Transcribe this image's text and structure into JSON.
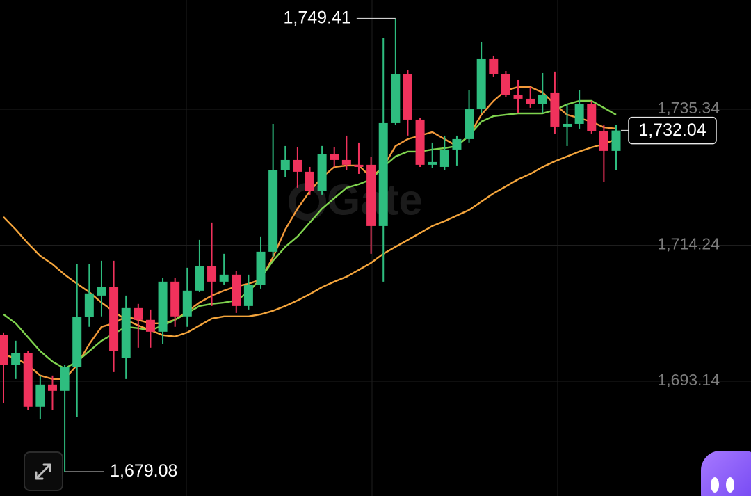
{
  "chart_data": {
    "type": "candlestick",
    "watermark": "Gate",
    "ylim": [
      1675.33,
      1752.29
    ],
    "yticks": [
      {
        "value": 1693.14,
        "label": "1,693.14"
      },
      {
        "value": 1714.24,
        "label": "1,714.24"
      },
      {
        "value": 1735.34,
        "label": "1,735.34"
      }
    ],
    "grid": true,
    "up_color": "#2ebd7f",
    "down_color": "#f0325c",
    "open": [
      1700.28,
      1695.64,
      1697.48,
      1689.17,
      1692.62,
      1691.65,
      1695.32,
      1703.09,
      1706.43,
      1707.73,
      1696.72,
      1704.49,
      1702.66,
      1700.82,
      1708.59,
      1703.2,
      1707.19,
      1710.96,
      1708.59,
      1709.67,
      1704.81,
      1708.05,
      1713.23,
      1725.85,
      1727.47,
      1725.64,
      1722.62,
      1728.34,
      1727.47,
      1726.72,
      1726.72,
      1717.22,
      1733.19,
      1740.74,
      1733.73,
      1726.72,
      1726.39,
      1729.09,
      1730.71,
      1735.35,
      1743.12,
      1740.74,
      1737.51,
      1736.97,
      1736.1,
      1737.94,
      1732.65,
      1733.08,
      1736.1,
      1732.0,
      1728.88
    ],
    "high": [
      1700.71,
      1699.42,
      1697.8,
      1694.02,
      1694.02,
      1695.64,
      1711.29,
      1711.29,
      1711.83,
      1711.83,
      1706.43,
      1705.14,
      1704.27,
      1709.13,
      1709.13,
      1710.75,
      1715.06,
      1717.76,
      1712.91,
      1710.21,
      1709.67,
      1715.6,
      1733.08,
      1729.63,
      1729.42,
      1726.39,
      1729.63,
      1729.42,
      1731.25,
      1730.17,
      1728.01,
      1746.36,
      1749.41,
      1741.5,
      1733.95,
      1730.17,
      1731.25,
      1731.25,
      1738.26,
      1745.82,
      1743.66,
      1741.28,
      1739.88,
      1738.8,
      1740.96,
      1741.18,
      1736.1,
      1738.26,
      1736.64,
      1732.87,
      1732.87
    ],
    "low": [
      1689.71,
      1693.48,
      1688.63,
      1687.23,
      1688.63,
      1679.08,
      1687.55,
      1701.58,
      1703.2,
      1694.56,
      1693.48,
      1698.34,
      1698.34,
      1698.88,
      1701.58,
      1701.58,
      1706.97,
      1704.81,
      1708.05,
      1703.73,
      1704.27,
      1707.51,
      1712.37,
      1724.78,
      1723.16,
      1722.08,
      1722.08,
      1726.39,
      1725.85,
      1725.31,
      1712.91,
      1708.59,
      1732.87,
      1731.25,
      1726.39,
      1726.18,
      1725.85,
      1726.61,
      1730.17,
      1734.81,
      1740.42,
      1737.18,
      1734.81,
      1735.57,
      1734.81,
      1731.57,
      1729.63,
      1732.33,
      1731.57,
      1724.02,
      1725.85
    ],
    "close": [
      1695.64,
      1697.48,
      1689.17,
      1692.62,
      1691.65,
      1695.32,
      1703.09,
      1706.76,
      1707.73,
      1697.8,
      1704.49,
      1702.66,
      1700.82,
      1708.59,
      1703.2,
      1707.19,
      1710.96,
      1708.59,
      1709.67,
      1704.81,
      1708.05,
      1713.23,
      1725.85,
      1727.47,
      1725.64,
      1722.62,
      1728.34,
      1727.47,
      1726.72,
      1726.39,
      1717.22,
      1733.19,
      1740.74,
      1733.73,
      1726.72,
      1727.15,
      1729.09,
      1730.71,
      1735.35,
      1743.12,
      1740.74,
      1737.51,
      1736.97,
      1736.1,
      1737.51,
      1732.65,
      1733.08,
      1736.1,
      1732.0,
      1728.88,
      1732.04
    ],
    "series": [
      {
        "color": "#f2993a",
        "values": [
          1697.26,
          1696.72,
          1695.64,
          1694.02,
          1693.48,
          1693.48,
          1695.64,
          1698.88,
          1701.58,
          1702.12,
          1703.2,
          1702.66,
          1702.12,
          1702.12,
          1702.66,
          1703.95,
          1705.35,
          1706.43,
          1707.19,
          1707.84,
          1708.27,
          1708.91,
          1712.37,
          1716.68,
          1719.92,
          1722.62,
          1724.78,
          1726.39,
          1726.61,
          1726.61,
          1724.78,
          1726.39,
          1729.63,
          1730.71,
          1731.25,
          1731.79,
          1730.71,
          1729.63,
          1731.25,
          1734.49,
          1736.64,
          1738.26,
          1738.8,
          1738.8,
          1737.94,
          1736.1,
          1734.49,
          1733.95,
          1733.41,
          1732.54,
          1732.33
        ]
      },
      {
        "color": "#7fd34e",
        "values": [
          1703.52,
          1702.12,
          1699.96,
          1697.8,
          1696.18,
          1695.1,
          1696.18,
          1697.8,
          1699.42,
          1700.5,
          1701.58,
          1701.36,
          1701.04,
          1701.79,
          1702.66,
          1703.73,
          1704.81,
          1705.14,
          1705.35,
          1705.68,
          1706.97,
          1709.13,
          1711.83,
          1713.99,
          1715.6,
          1717.76,
          1719.92,
          1721.54,
          1723.16,
          1723.7,
          1724.45,
          1726.39,
          1728.01,
          1728.77,
          1728.77,
          1729.09,
          1729.31,
          1729.63,
          1731.25,
          1733.41,
          1734.27,
          1734.49,
          1734.7,
          1734.7,
          1734.7,
          1735.24,
          1736.1,
          1736.64,
          1736.64,
          1735.57,
          1734.49
        ]
      },
      {
        "color": "#f4a53c",
        "values": [
          1718.63,
          1716.68,
          1714.52,
          1712.58,
          1711.29,
          1709.67,
          1708.27,
          1706.97,
          1705.35,
          1703.95,
          1702.66,
          1701.79,
          1701.04,
          1700.28,
          1700.07,
          1700.71,
          1701.79,
          1702.87,
          1703.2,
          1703.2,
          1703.2,
          1703.52,
          1704.06,
          1704.81,
          1705.68,
          1706.65,
          1707.73,
          1708.59,
          1709.35,
          1710.42,
          1711.5,
          1712.91,
          1713.99,
          1715.06,
          1716.14,
          1717.22,
          1717.98,
          1718.84,
          1719.7,
          1721.0,
          1722.29,
          1723.37,
          1724.45,
          1725.31,
          1726.39,
          1727.26,
          1728.01,
          1728.77,
          1729.42,
          1729.95,
          1730.71
        ]
      }
    ],
    "annotations": [
      {
        "value": 1749.41,
        "label": "1,749.41"
      },
      {
        "value": 1679.08,
        "label": "1,679.08"
      }
    ],
    "current_price": {
      "value": 1732.04,
      "label": "1,732.04"
    }
  }
}
